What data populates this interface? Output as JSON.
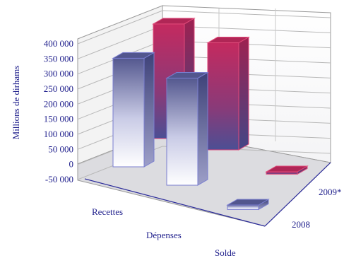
{
  "chart_data": {
    "type": "bar",
    "style": "3d-clustered",
    "ylabel": "Millions de dirhams",
    "yticks": [
      "400 000",
      "350 000",
      "300 000",
      "250 000",
      "200 000",
      "150 000",
      "100 000",
      "50 000",
      "0",
      "-50 000"
    ],
    "ylim": [
      -50000,
      400000
    ],
    "categories": [
      "Recettes",
      "Dépenses",
      "Solde"
    ],
    "series": [
      {
        "name": "2008",
        "values": [
          360000,
          355000,
          -15000
        ]
      },
      {
        "name": "2009*",
        "values": [
          380000,
          355000,
          -8000
        ]
      }
    ],
    "grid": true,
    "legend": "none",
    "colors": {
      "2008": "#4a4e8c",
      "2009*": "#b8285a"
    }
  }
}
